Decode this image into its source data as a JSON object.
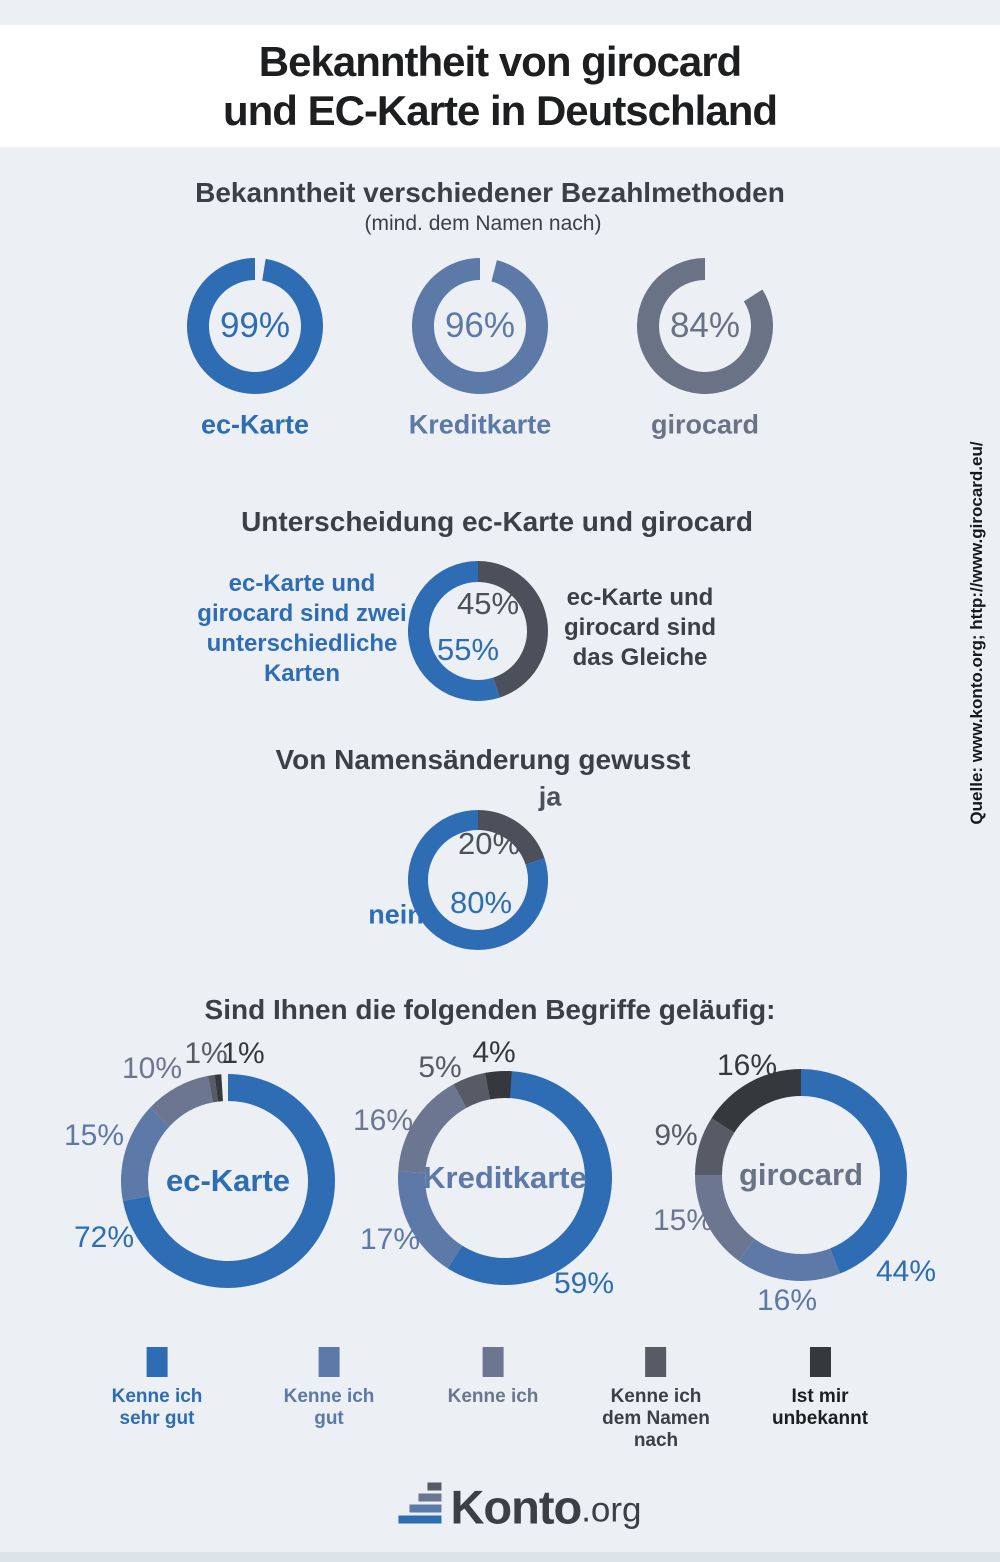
{
  "page": {
    "title": "Bekanntheit von girocard\nund EC-Karte in Deutschland",
    "source_note": "Quelle: www.konto.org; http://www.girocard.eu/"
  },
  "colors": {
    "blue": "#2e6db4",
    "slate_blue": "#5d79a8",
    "gray": "#6a7386",
    "gray_slate": "#6c7690",
    "dark": "#4b505a",
    "dark_gray": "#565b66",
    "near_black": "#35383c",
    "heading": "#3b3f46",
    "title": "#1d1e20"
  },
  "sections": {
    "payment_awareness": {
      "heading": "Bekanntheit verschiedener Bezahlmethoden",
      "subheading": "(mind. dem Namen nach)"
    },
    "distinction": {
      "heading": "Unterscheidung ec-Karte und girocard",
      "left_label": "ec-Karte und\ngirocard sind zwei\nunterschiedliche\nKarten",
      "right_label": "ec-Karte und\ngirocard sind\ndas Gleiche"
    },
    "name_change": {
      "heading": "Von Namensänderung gewusst"
    },
    "familiarity": {
      "heading": "Sind Ihnen die folgenden Begriffe geläufig:"
    }
  },
  "chart_data": [
    {
      "id": "awareness_ec",
      "type": "donut",
      "label": "ec-Karte",
      "value_pct": 99,
      "color": "blue"
    },
    {
      "id": "awareness_kredit",
      "type": "donut",
      "label": "Kreditkarte",
      "value_pct": 96,
      "color": "slate_blue"
    },
    {
      "id": "awareness_giro",
      "type": "donut",
      "label": "girocard",
      "value_pct": 84,
      "color": "gray"
    },
    {
      "id": "distinction",
      "type": "donut",
      "segments": [
        {
          "label": "ec-Karte und girocard sind das Gleiche",
          "value": 45,
          "color": "dark"
        },
        {
          "label": "ec-Karte und girocard sind zwei unterschiedliche Karten",
          "value": 55,
          "color": "blue"
        }
      ]
    },
    {
      "id": "name_change",
      "type": "donut",
      "segments": [
        {
          "label": "ja",
          "value": 20,
          "color": "dark"
        },
        {
          "label": "nein",
          "value": 80,
          "color": "blue"
        }
      ]
    },
    {
      "id": "familiarity_ec",
      "type": "donut",
      "center_label": "ec-Karte",
      "center_color": "blue",
      "segments": [
        {
          "label": "Kenne ich sehr gut",
          "value": 72,
          "color": "blue"
        },
        {
          "label": "Kenne ich gut",
          "value": 15,
          "color": "slate_blue"
        },
        {
          "label": "Kenne ich",
          "value": 10,
          "color": "gray_slate"
        },
        {
          "label": "Kenne ich dem Namen nach",
          "value": 1,
          "color": "dark_gray"
        },
        {
          "label": "Ist mir unbekannt",
          "value": 1,
          "color": "near_black"
        }
      ]
    },
    {
      "id": "familiarity_kredit",
      "type": "donut",
      "center_label": "Kreditkarte",
      "center_color": "slate_blue",
      "segments": [
        {
          "label": "Kenne ich sehr gut",
          "value": 59,
          "color": "blue"
        },
        {
          "label": "Kenne ich gut",
          "value": 17,
          "color": "slate_blue"
        },
        {
          "label": "Kenne ich",
          "value": 16,
          "color": "gray_slate"
        },
        {
          "label": "Kenne ich dem Namen nach",
          "value": 5,
          "color": "dark_gray"
        },
        {
          "label": "Ist mir unbekannt",
          "value": 4,
          "color": "near_black"
        }
      ]
    },
    {
      "id": "familiarity_giro",
      "type": "donut",
      "center_label": "girocard",
      "center_color": "gray",
      "segments": [
        {
          "label": "Kenne ich sehr gut",
          "value": 44,
          "color": "blue"
        },
        {
          "label": "Kenne ich gut",
          "value": 16,
          "color": "slate_blue"
        },
        {
          "label": "Kenne ich",
          "value": 15,
          "color": "gray_slate"
        },
        {
          "label": "Kenne ich dem Namen nach",
          "value": 9,
          "color": "dark_gray"
        },
        {
          "label": "Ist mir unbekannt",
          "value": 16,
          "color": "near_black"
        }
      ]
    }
  ],
  "legend": {
    "items": [
      {
        "label": "Kenne ich\nsehr gut",
        "color": "blue",
        "label_color": "blue"
      },
      {
        "label": "Kenne ich\ngut",
        "color": "slate_blue",
        "label_color": "slate_blue"
      },
      {
        "label": "Kenne ich",
        "color": "gray_slate",
        "label_color": "gray_slate"
      },
      {
        "label": "Kenne ich\ndem Namen\nnach",
        "color": "dark_gray",
        "label_color": "heading"
      },
      {
        "label": "Ist mir\nunbekannt",
        "color": "near_black",
        "label_color": "title"
      }
    ]
  },
  "logo": {
    "name": "Konto",
    "tld": ".org"
  }
}
